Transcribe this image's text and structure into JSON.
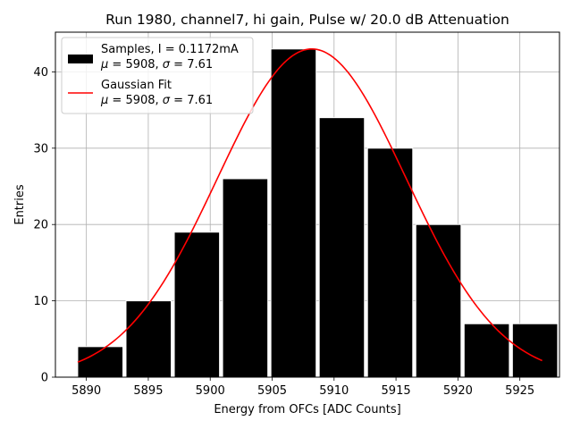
{
  "chart_data": {
    "type": "bar",
    "title": "Run 1980, channel7, hi gain, Pulse w/ 20.0 dB Attenuation",
    "xlabel": "Energy from OFCs [ADC Counts]",
    "ylabel": "Entries",
    "xlim": [
      5887.5,
      5928.2
    ],
    "ylim": [
      0,
      45.2
    ],
    "grid": true,
    "legend_position": "top-left",
    "xticks": [
      5890,
      5895,
      5900,
      5905,
      5910,
      5915,
      5920,
      5925
    ],
    "yticks": [
      0,
      10,
      20,
      30,
      40
    ],
    "histogram": {
      "name_line1": "Samples, I = 0.1172mA",
      "name_line2": "μ = 5908, σ = 7.61",
      "color": "#000000",
      "edge_color": "#ffffff",
      "bin_edges": [
        5889.3,
        5893.2,
        5897.1,
        5901.0,
        5904.9,
        5908.8,
        5912.7,
        5916.6,
        5920.5,
        5924.4,
        5928.3
      ],
      "bin_display_width": 3.65,
      "counts": [
        4,
        10,
        19,
        26,
        43,
        34,
        30,
        20,
        7,
        7
      ]
    },
    "fit": {
      "name_line1": "Gaussian Fit",
      "name_line2": "μ = 5908, σ = 7.61",
      "color": "#ff0000",
      "mu": 5908.2,
      "sigma": 7.61,
      "amplitude": 43.0,
      "x_range": [
        5889.3,
        5926.8
      ]
    }
  }
}
